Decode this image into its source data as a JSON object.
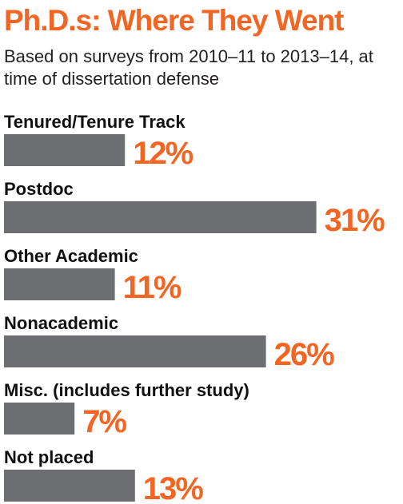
{
  "chart_data": {
    "type": "bar",
    "orientation": "horizontal",
    "title": "Ph.D.s: Where They Went",
    "subtitle": "Based on surveys from 2010–11 to 2013–14, at time of dissertation defense",
    "categories": [
      "Tenured/Tenure Track",
      "Postdoc",
      "Other Academic",
      "Nonacademic",
      "Misc. (includes further study)",
      "Not placed"
    ],
    "values": [
      12,
      31,
      11,
      26,
      7,
      13
    ],
    "value_labels": [
      "12%",
      "31%",
      "11%",
      "26%",
      "7%",
      "13%"
    ],
    "unit": "%",
    "grid": false,
    "colors": {
      "bar": "#6d6e71",
      "value_text": "#f26522",
      "title": "#f26522"
    }
  }
}
